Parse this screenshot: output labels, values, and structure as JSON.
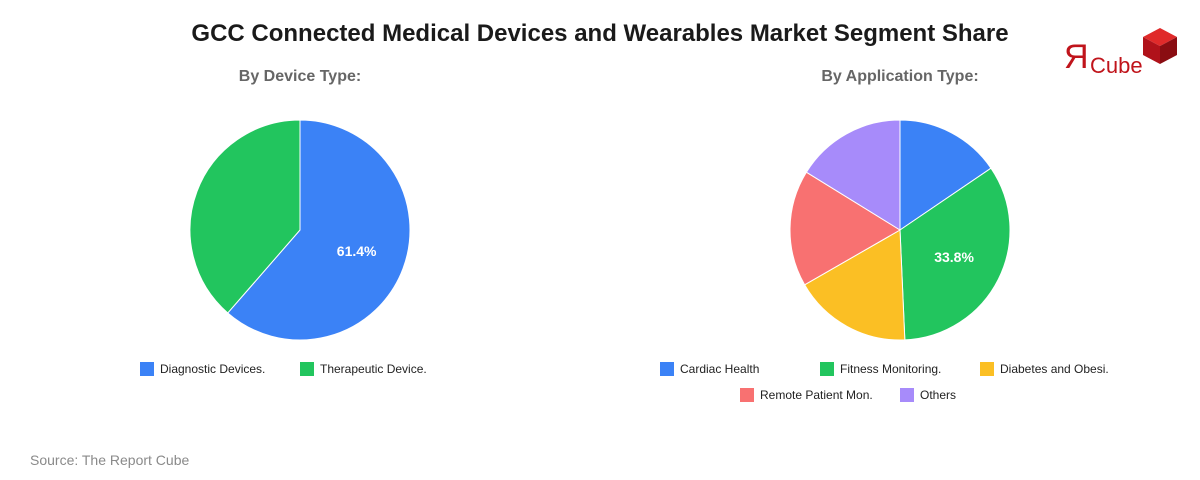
{
  "title": "GCC Connected Medical Devices and Wearables Market Segment Share",
  "logo": {
    "r": "Я",
    "text": "Cube"
  },
  "source": "Source: The Report Cube",
  "chart_data": [
    {
      "type": "pie",
      "subtitle": "By Device Type:",
      "slices": [
        {
          "label": "Diagnostic Devices.",
          "value": 61.4,
          "color": "#3b82f6",
          "show_label": true
        },
        {
          "label": "Therapeutic Device.",
          "value": 38.6,
          "color": "#22c55e",
          "show_label": false
        }
      ],
      "legend_position": "bottom"
    },
    {
      "type": "pie",
      "subtitle": "By Application Type:",
      "slices": [
        {
          "label": "Cardiac Health",
          "value": 15.5,
          "color": "#3b82f6",
          "show_label": false
        },
        {
          "label": "Fitness Monitoring.",
          "value": 33.8,
          "color": "#22c55e",
          "show_label": true
        },
        {
          "label": "Diabetes and Obesi.",
          "value": 17.4,
          "color": "#fbbf24",
          "show_label": false
        },
        {
          "label": "Remote Patient Mon.",
          "value": 17.1,
          "color": "#f87171",
          "show_label": false
        },
        {
          "label": "Others",
          "value": 16.2,
          "color": "#a78bfa",
          "show_label": false
        }
      ],
      "legend_position": "bottom"
    }
  ]
}
